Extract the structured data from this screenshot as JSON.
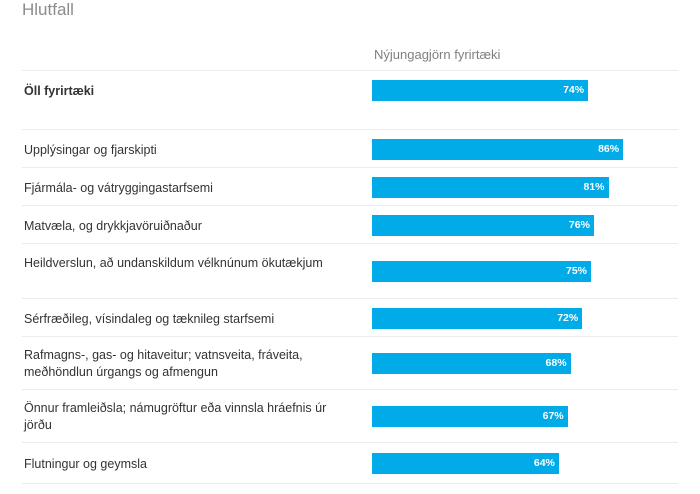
{
  "title": "Hlutfall",
  "colors": {
    "bar": "#00abe8"
  },
  "chart_data": {
    "type": "bar",
    "orientation": "horizontal",
    "title": "Hlutfall",
    "series": [
      {
        "name": "Nýjungagjörn fyrirtæki"
      }
    ],
    "xlim": [
      0,
      100
    ],
    "unit": "%",
    "categories": [
      "Öll fyrirtæki",
      "Upplýsingar og fjarskipti",
      "Fjármála- og vátryggingastarfsemi",
      "Matvæla, og drykkjavöruiðnaður",
      "Heildverslun, að undanskildum vélknúnum ökutækjum",
      "Sérfræðileg, vísindaleg og tæknileg starfsemi",
      "Rafmagns-, gas- og hitaveitur; vatnsveita, fráveita, meðhöndlun úrgangs og afmengun",
      "Önnur framleiðsla; námugröftur eða vinnsla hráefnis úr jörðu",
      "Flutningur og geymsla"
    ],
    "values": [
      74,
      86,
      81,
      76,
      75,
      72,
      68,
      67,
      64
    ],
    "value_labels": [
      "74%",
      "86%",
      "81%",
      "76%",
      "75%",
      "72%",
      "68%",
      "67%",
      "64%"
    ]
  }
}
